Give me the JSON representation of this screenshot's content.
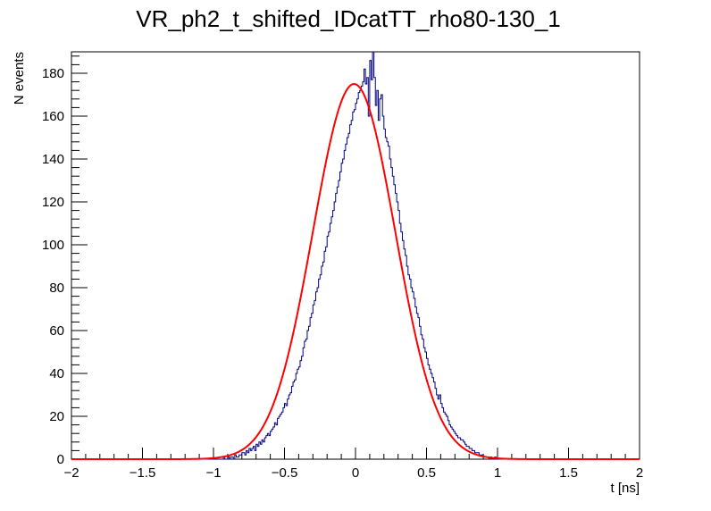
{
  "chart_data": {
    "type": "histogram",
    "title": "VR_ph2_t_shifted_IDcatTT_rho80-130_1",
    "xlabel": "t [ns]",
    "ylabel": "N events",
    "xlim": [
      -2,
      2
    ],
    "ylim": [
      0,
      190
    ],
    "x_ticks": [
      -2,
      -1.5,
      -1,
      -0.5,
      0,
      0.5,
      1,
      1.5,
      2
    ],
    "x_tick_labels": [
      "−2",
      "−1.5",
      "−1",
      "−0.5",
      "0",
      "0.5",
      "1",
      "1.5",
      "2"
    ],
    "y_ticks": [
      0,
      20,
      40,
      60,
      80,
      100,
      120,
      140,
      160,
      180
    ],
    "y_tick_labels": [
      "0",
      "20",
      "40",
      "60",
      "80",
      "100",
      "120",
      "140",
      "160",
      "180"
    ],
    "grid": false,
    "histogram_color": "#000080",
    "fit_color": "#ff0000",
    "bin_width": 0.01,
    "bin_range": [
      -2,
      2
    ],
    "nonzero_bins_start": -0.93,
    "counts": [
      1,
      0,
      0,
      1,
      0,
      1,
      1,
      0,
      2,
      1,
      1,
      2,
      2,
      3,
      3,
      2,
      4,
      3,
      5,
      4,
      5,
      6,
      4,
      7,
      6,
      8,
      7,
      9,
      8,
      10,
      11,
      12,
      11,
      13,
      14,
      15,
      17,
      16,
      19,
      20,
      21,
      22,
      24,
      26,
      25,
      28,
      30,
      31,
      34,
      36,
      37,
      40,
      42,
      43,
      46,
      48,
      52,
      55,
      56,
      60,
      62,
      66,
      68,
      72,
      74,
      78,
      80,
      84,
      86,
      90,
      92,
      97,
      99,
      104,
      106,
      110,
      113,
      116,
      120,
      124,
      127,
      130,
      134,
      138,
      140,
      144,
      147,
      150,
      152,
      156,
      158,
      162,
      163,
      166,
      168,
      171,
      172,
      174,
      176,
      182,
      175,
      178,
      160,
      186,
      177,
      190,
      178,
      165,
      172,
      158,
      168,
      170,
      160,
      154,
      150,
      148,
      146,
      140,
      136,
      132,
      128,
      124,
      120,
      116,
      110,
      106,
      102,
      98,
      95,
      90,
      86,
      84,
      80,
      78,
      75,
      71,
      68,
      66,
      62,
      58,
      56,
      52,
      50,
      47,
      44,
      42,
      40,
      38,
      36,
      33,
      30,
      28,
      30,
      26,
      24,
      22,
      21,
      20,
      18,
      16,
      15,
      14,
      13,
      12,
      11,
      10,
      10,
      9,
      9,
      8,
      7,
      6,
      6,
      5,
      5,
      4,
      4,
      3,
      3,
      3,
      2,
      2,
      2,
      1,
      1,
      1,
      1,
      0,
      1,
      0,
      0,
      1
    ],
    "fit": {
      "function": "gaus",
      "amplitude": 175,
      "mean": -0.01,
      "sigma": 0.29
    }
  }
}
